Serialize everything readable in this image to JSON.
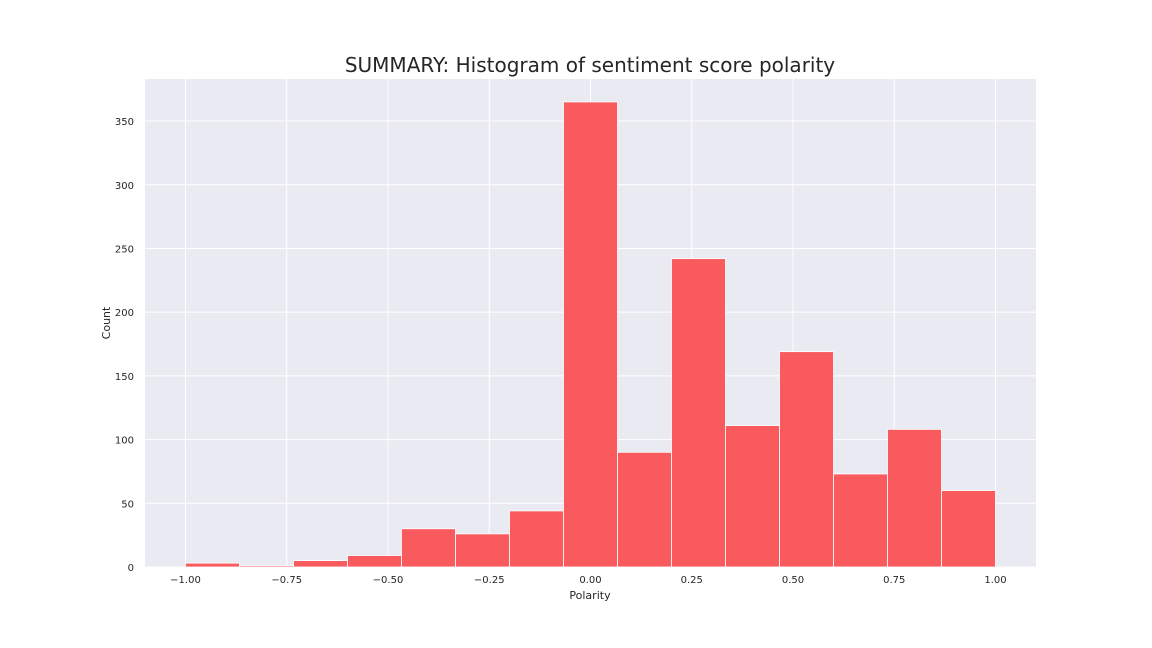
{
  "chart_data": {
    "type": "bar",
    "title": "SUMMARY: Histogram of sentiment score polarity",
    "xlabel": "Polarity",
    "ylabel": "Count",
    "xlim": [
      -1.1,
      1.1
    ],
    "ylim": [
      0,
      383
    ],
    "grid": true,
    "bar_color": "#f85a5e",
    "background_color": "#eaeaf2",
    "grid_color": "#ffffff",
    "x_ticks": [
      -1.0,
      -0.75,
      -0.5,
      -0.25,
      0.0,
      0.25,
      0.5,
      0.75,
      1.0
    ],
    "x_tick_labels": [
      "−1.00",
      "−0.75",
      "−0.50",
      "−0.25",
      "0.00",
      "0.25",
      "0.50",
      "0.75",
      "1.00"
    ],
    "y_ticks": [
      0,
      50,
      100,
      150,
      200,
      250,
      300,
      350
    ],
    "y_tick_labels": [
      "0",
      "50",
      "100",
      "150",
      "200",
      "250",
      "300",
      "350"
    ],
    "bin_edges": [
      -1.0,
      -0.8667,
      -0.7333,
      -0.6,
      -0.4667,
      -0.3333,
      -0.2,
      -0.0667,
      0.0667,
      0.2,
      0.3333,
      0.4667,
      0.6,
      0.7333,
      0.8667,
      1.0
    ],
    "values": [
      3,
      1,
      5,
      9,
      30,
      26,
      44,
      365,
      90,
      242,
      111,
      169,
      73,
      108,
      60
    ]
  }
}
